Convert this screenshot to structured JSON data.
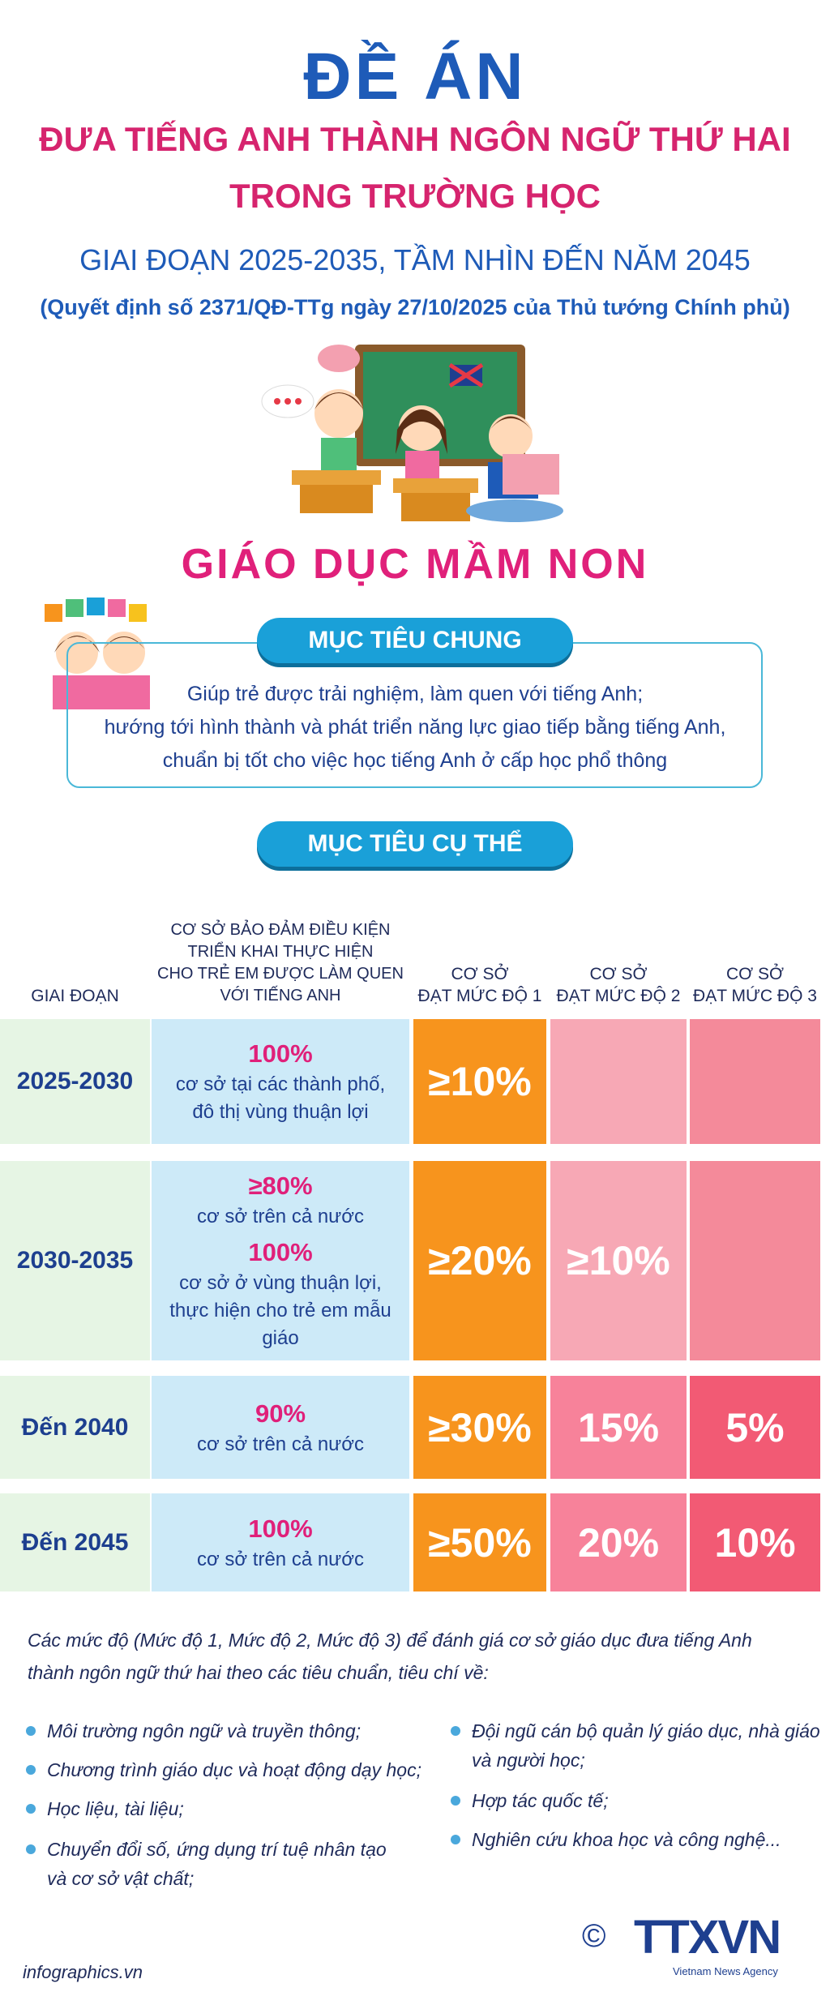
{
  "header": {
    "title": "ĐỀ ÁN",
    "subtitle_lines": [
      "ĐƯA TIẾNG ANH THÀNH NGÔN NGỮ THỨ HAI",
      "TRONG TRƯỜNG HỌC"
    ],
    "period": "GIAI ĐOẠN 2025-2035, TẦM NHÌN ĐẾN NĂM 2045",
    "decision": "(Quyết định số 2371/QĐ-TTg ngày 27/10/2025 của Thủ tướng Chính phủ)"
  },
  "section": "GIÁO DỤC MẦM NON",
  "goal_general": {
    "heading": "MỤC TIÊU CHUNG",
    "lines": [
      "Giúp trẻ được trải nghiệm, làm quen với tiếng Anh;",
      "hướng tới hình thành và phát triển năng lực giao tiếp bằng tiếng Anh,",
      "chuẩn bị tốt cho việc học tiếng Anh ở cấp học phổ thông"
    ]
  },
  "goal_specific": {
    "heading": "MỤC TIÊU CỤ THỂ",
    "columns": [
      [
        "GIAI ĐOẠN"
      ],
      [
        "CƠ SỞ BẢO ĐẢM ĐIỀU KIỆN",
        "TRIỂN KHAI THỰC HIỆN",
        "CHO TRẺ EM ĐƯỢC LÀM QUEN",
        "VỚI TIẾNG ANH"
      ],
      [
        "CƠ SỞ",
        "ĐẠT MỨC ĐỘ 1"
      ],
      [
        "CƠ SỞ",
        "ĐẠT MỨC ĐỘ 2"
      ],
      [
        "CƠ SỞ",
        "ĐẠT MỨC ĐỘ 3"
      ]
    ],
    "rows": [
      {
        "period": "2025-2030",
        "conditions": [
          {
            "value": "100%",
            "text": [
              "cơ sở tại các thành phố,",
              "đô thị vùng thuận lợi"
            ]
          }
        ],
        "levels": [
          "≥10%"
        ]
      },
      {
        "period": "2030-2035",
        "conditions": [
          {
            "value": "≥80%",
            "text": [
              "cơ sở trên cả nước"
            ]
          },
          {
            "value": "100%",
            "text": [
              "cơ sở ở vùng thuận lợi,",
              "thực hiện cho trẻ em mẫu giáo"
            ]
          }
        ],
        "levels": [
          "≥20%",
          "≥10%"
        ]
      },
      {
        "period": "Đến 2040",
        "conditions": [
          {
            "value": "90%",
            "text": [
              "cơ sở trên cả nước"
            ]
          }
        ],
        "levels": [
          "≥30%",
          "15%",
          "5%"
        ]
      },
      {
        "period": "Đến 2045",
        "conditions": [
          {
            "value": "100%",
            "text": [
              "cơ sở trên cả nước"
            ]
          }
        ],
        "levels": [
          "≥50%",
          "20%",
          "10%"
        ]
      }
    ]
  },
  "note": [
    "Các mức độ (Mức độ 1, Mức độ 2, Mức độ 3) để đánh giá cơ sở giáo dục đưa tiếng Anh",
    "thành ngôn ngữ thứ hai theo các tiêu chuẩn, tiêu chí về:"
  ],
  "criteria_left": [
    [
      "Môi trường ngôn ngữ và truyền thông;"
    ],
    [
      "Chương trình giáo dục và hoạt động dạy học;"
    ],
    [
      "Học liệu, tài liệu;"
    ],
    [
      "Chuyển đổi số, ứng dụng trí tuệ nhân tạo",
      "và cơ sở vật chất;"
    ]
  ],
  "criteria_right": [
    [
      "Đội ngũ cán bộ quản lý giáo dục, nhà giáo",
      "và người học;"
    ],
    [
      "Hợp tác quốc tế;"
    ],
    [
      "Nghiên cứu khoa học và công nghệ..."
    ]
  ],
  "footer": {
    "source": "infographics.vn",
    "logo": "TTXVN",
    "agency": "Vietnam News Agency",
    "copyright": "©"
  }
}
